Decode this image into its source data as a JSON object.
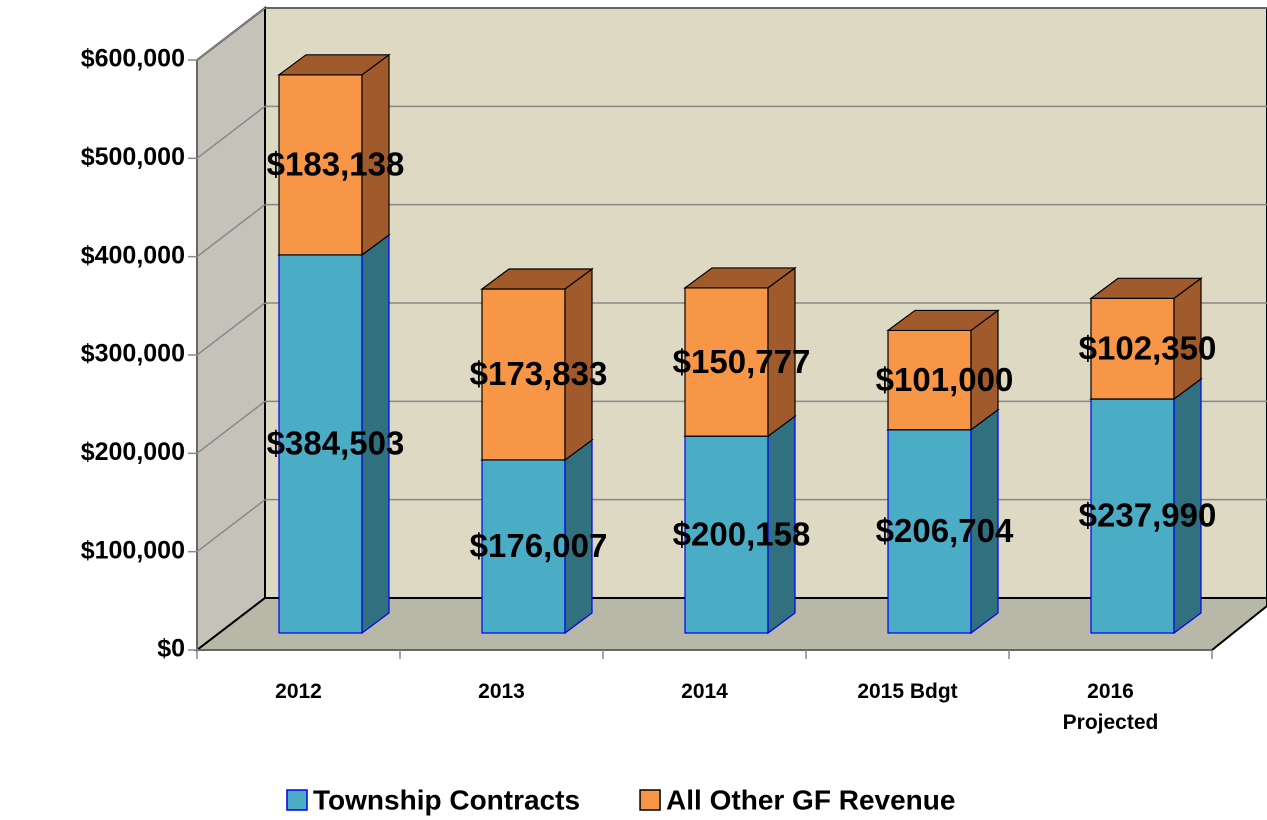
{
  "chart_data": {
    "type": "bar3d_stacked",
    "categories": [
      "2012",
      "2013",
      "2014",
      "2015 Bdgt",
      "2016 Projected"
    ],
    "series": [
      {
        "name": "Township Contracts",
        "color": "#4bacc6",
        "side_color": "#31707f",
        "values": [
          384503,
          176007,
          200158,
          206704,
          237990
        ],
        "value_labels": [
          "$384,503",
          "$176,007",
          "$200,158",
          "$206,704",
          "$237,990"
        ]
      },
      {
        "name": "All Other GF Revenue",
        "color": "#f79646",
        "side_color": "#a05a2c",
        "values": [
          183138,
          173833,
          150777,
          101000,
          102350
        ],
        "value_labels": [
          "$183,138",
          "$173,833",
          "$150,777",
          "$101,000",
          "$102,350"
        ]
      }
    ],
    "ylim": [
      0,
      600000
    ],
    "yticks": [
      {
        "value": 0,
        "label": "$0"
      },
      {
        "value": 100000,
        "label": "$100,000"
      },
      {
        "value": 200000,
        "label": "$200,000"
      },
      {
        "value": 300000,
        "label": "$300,000"
      },
      {
        "value": 400000,
        "label": "$400,000"
      },
      {
        "value": 500000,
        "label": "$500,000"
      },
      {
        "value": 600000,
        "label": "$600,000"
      }
    ],
    "grid": true,
    "legend": "bottom"
  }
}
